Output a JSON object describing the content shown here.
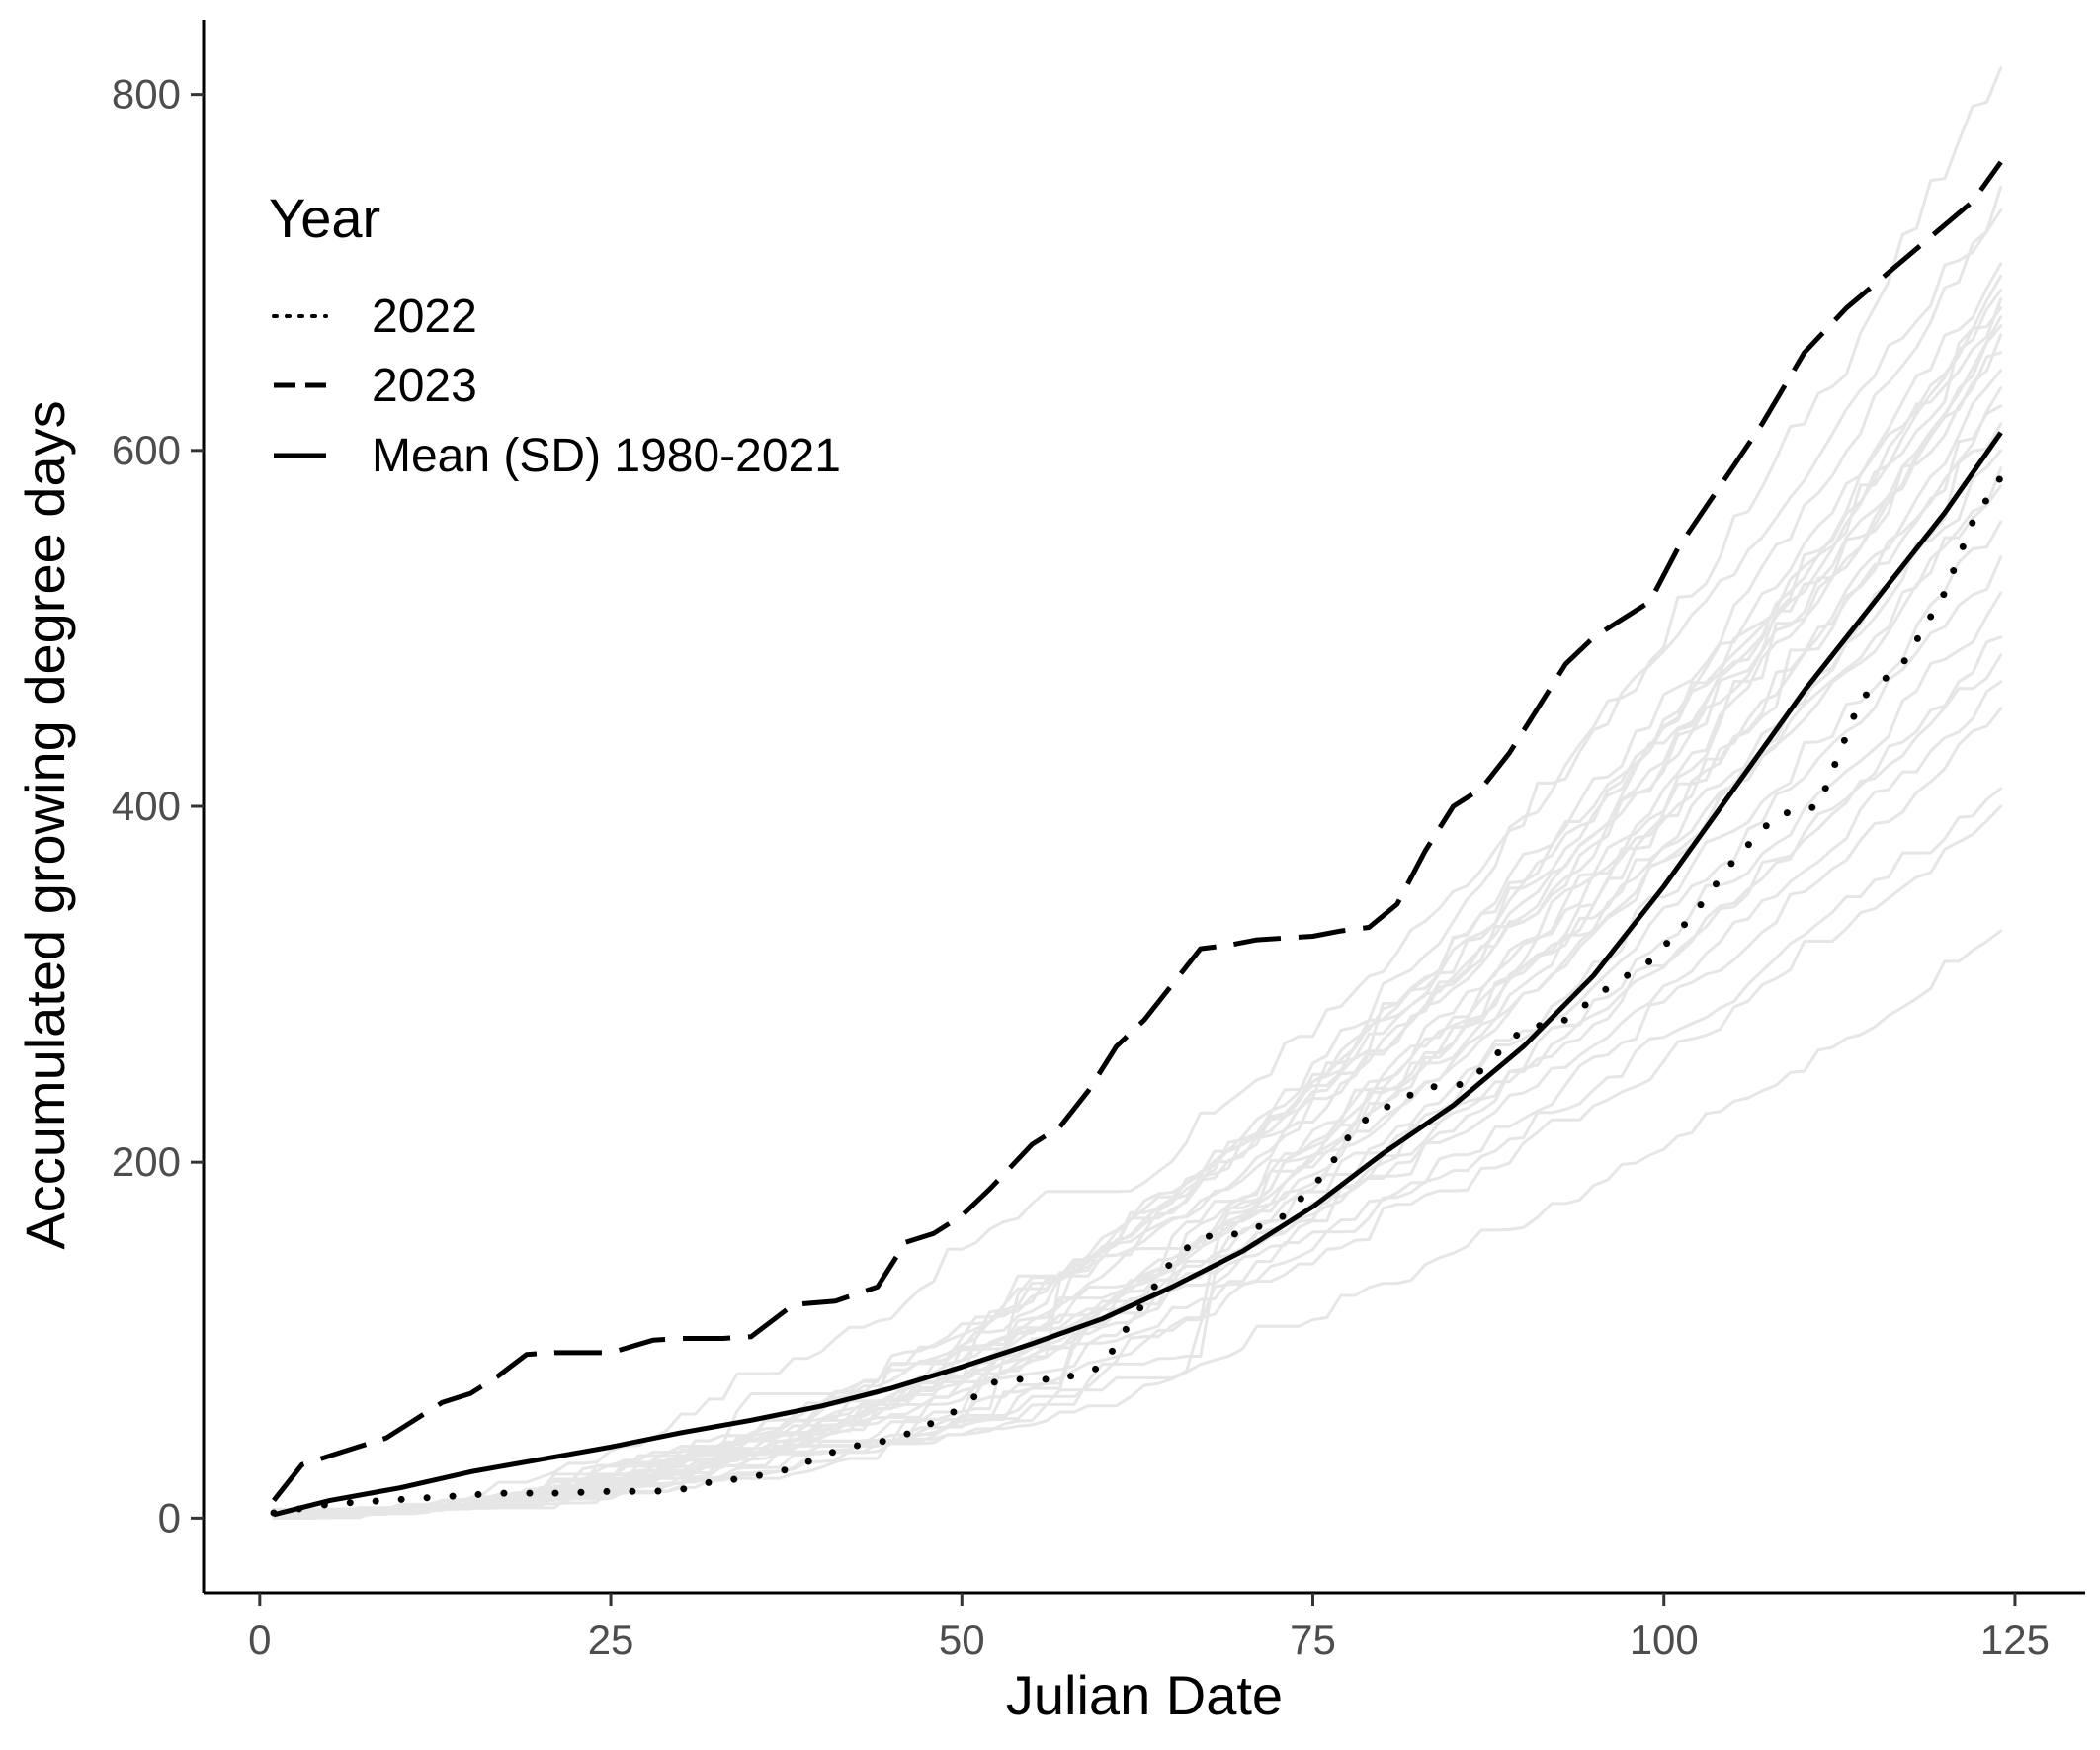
{
  "chart_data": {
    "type": "line",
    "title": "",
    "xlabel": "Julian Date",
    "ylabel": "Accumulated growing degree days",
    "xlim": [
      -4,
      130
    ],
    "ylim": [
      -42,
      842
    ],
    "x_ticks": [
      0,
      25,
      50,
      75,
      100,
      125
    ],
    "y_ticks": [
      0,
      200,
      400,
      600,
      800
    ],
    "grid": false,
    "legend": {
      "title": "Year",
      "position": "top-left",
      "entries": [
        "2022",
        "2023",
        "Mean (SD) 1980-2021"
      ]
    },
    "colors": {
      "background": "#ffffff",
      "historical_years": "#e6e6e6",
      "highlighted_series": "#000000",
      "tick_labels": "#4d4d4d"
    },
    "historical_years_note_x_end": 124,
    "historical_final_values": [
      815,
      748,
      735,
      705,
      698,
      690,
      685,
      680,
      675,
      670,
      665,
      655,
      645,
      635,
      625,
      615,
      600,
      590,
      580,
      560,
      540,
      520,
      495,
      485,
      470,
      455,
      410,
      400,
      330
    ],
    "series": [
      {
        "name": "2022",
        "linestyle": "dotted",
        "x": [
          1,
          5,
          9,
          13,
          17,
          21,
          25,
          28,
          30,
          32,
          35,
          38,
          40,
          42,
          45,
          47,
          50,
          52,
          54,
          57,
          60,
          62,
          65,
          67,
          70,
          73,
          76,
          78,
          80,
          83,
          86,
          88,
          90,
          93,
          96,
          99,
          102,
          105,
          108,
          111,
          114,
          117,
          120,
          122,
          124
        ],
        "y": [
          3,
          8,
          10,
          12,
          14,
          14,
          15,
          15,
          16,
          20,
          23,
          28,
          35,
          40,
          44,
          50,
          62,
          76,
          78,
          78,
          85,
          110,
          145,
          158,
          160,
          170,
          195,
          220,
          230,
          242,
          244,
          260,
          275,
          280,
          298,
          313,
          338,
          370,
          395,
          400,
          460,
          480,
          520,
          560,
          585
        ]
      },
      {
        "name": "2023",
        "linestyle": "dashed",
        "x": [
          1,
          3,
          5,
          7,
          9,
          11,
          13,
          15,
          17,
          19,
          21,
          25,
          28,
          30,
          33,
          35,
          38,
          41,
          44,
          46,
          48,
          50,
          52,
          55,
          57,
          59,
          61,
          63,
          65,
          67,
          69,
          71,
          73,
          75,
          77,
          79,
          81,
          83,
          85,
          87,
          89,
          91,
          93,
          95,
          97,
          99,
          101,
          104,
          107,
          110,
          113,
          116,
          119,
          122,
          124
        ],
        "y": [
          10,
          30,
          35,
          40,
          45,
          55,
          65,
          70,
          80,
          92,
          93,
          93,
          100,
          101,
          101,
          102,
          120,
          122,
          130,
          155,
          160,
          170,
          185,
          210,
          220,
          240,
          265,
          280,
          300,
          320,
          322,
          325,
          326,
          327,
          330,
          332,
          345,
          375,
          400,
          410,
          430,
          455,
          480,
          495,
          505,
          515,
          545,
          580,
          615,
          655,
          680,
          700,
          720,
          740,
          762
        ]
      },
      {
        "name": "Mean (SD) 1980-2021",
        "linestyle": "solid",
        "x": [
          1,
          5,
          10,
          15,
          20,
          25,
          30,
          35,
          40,
          45,
          50,
          55,
          60,
          65,
          70,
          75,
          80,
          85,
          90,
          95,
          100,
          105,
          110,
          115,
          120,
          124
        ],
        "y": [
          2,
          10,
          17,
          26,
          33,
          40,
          48,
          55,
          63,
          73,
          85,
          98,
          112,
          130,
          150,
          175,
          205,
          232,
          265,
          305,
          355,
          410,
          465,
          515,
          565,
          610
        ]
      }
    ]
  }
}
